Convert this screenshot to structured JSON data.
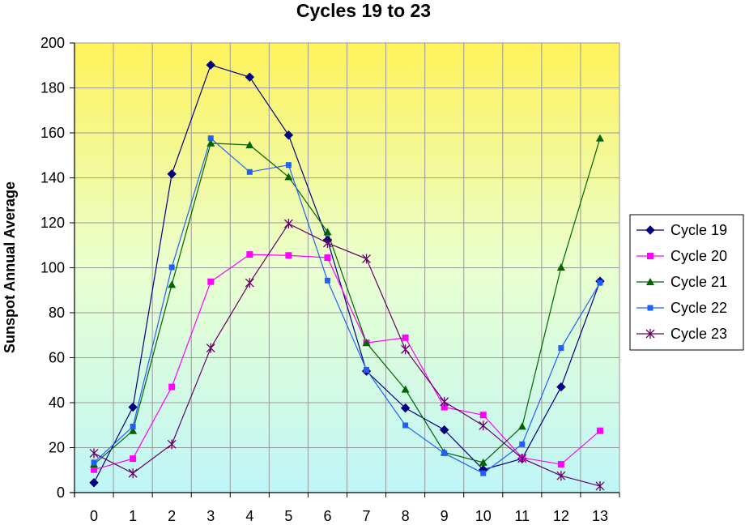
{
  "chart_data": {
    "type": "line",
    "title": "Cycles 19 to 23",
    "xlabel": "",
    "ylabel": "Sunspot Annual Average",
    "x": [
      0,
      1,
      2,
      3,
      4,
      5,
      6,
      7,
      8,
      9,
      10,
      11,
      12,
      13
    ],
    "xlim": [
      0,
      13
    ],
    "ylim": [
      0,
      200
    ],
    "y_ticks": [
      0,
      20,
      40,
      60,
      80,
      100,
      120,
      140,
      160,
      180,
      200
    ],
    "grid": true,
    "background": "yellow-to-cyan vertical gradient",
    "legend_position": "right",
    "series": [
      {
        "name": "Cycle 19",
        "color": "#000080",
        "marker": "diamond",
        "values": [
          4.4,
          38.0,
          141.7,
          190.2,
          184.8,
          159.0,
          112.3,
          54.0,
          37.6,
          27.9,
          10.2,
          15.1,
          47.0,
          94.0
        ]
      },
      {
        "name": "Cycle 20",
        "color": "#ff00ff",
        "marker": "square",
        "values": [
          10.2,
          15.1,
          47.0,
          93.8,
          105.9,
          105.5,
          104.5,
          66.6,
          68.9,
          38.0,
          34.5,
          15.5,
          12.6,
          27.5
        ]
      },
      {
        "name": "Cycle 21",
        "color": "#006400",
        "marker": "triangle",
        "values": [
          12.6,
          27.5,
          92.5,
          155.4,
          154.6,
          140.4,
          115.9,
          66.6,
          45.9,
          17.9,
          13.4,
          29.4,
          100.2,
          157.6
        ]
      },
      {
        "name": "Cycle 22",
        "color": "#1f5fff",
        "marker": "small-square",
        "values": [
          13.4,
          29.4,
          100.2,
          157.6,
          142.6,
          145.7,
          94.3,
          54.6,
          29.9,
          17.5,
          8.6,
          21.5,
          64.3,
          93.3
        ]
      },
      {
        "name": "Cycle 23",
        "color": "#660066",
        "marker": "star",
        "values": [
          17.5,
          8.6,
          21.5,
          64.3,
          93.3,
          119.6,
          111.0,
          104.0,
          63.7,
          40.4,
          29.8,
          15.2,
          7.5,
          2.9
        ]
      }
    ]
  }
}
